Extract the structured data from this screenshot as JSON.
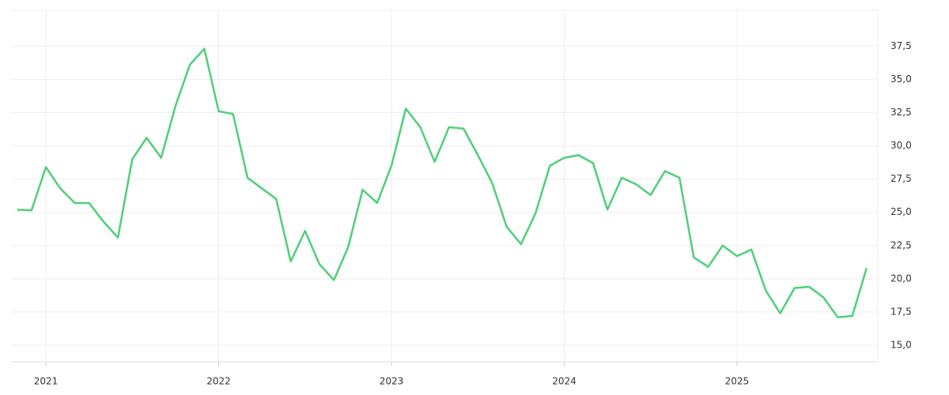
{
  "chart_data": {
    "type": "line",
    "x": [
      2020.833,
      2020.917,
      2021.0,
      2021.083,
      2021.167,
      2021.25,
      2021.333,
      2021.417,
      2021.5,
      2021.583,
      2021.667,
      2021.75,
      2021.833,
      2021.917,
      2022.0,
      2022.083,
      2022.167,
      2022.25,
      2022.333,
      2022.417,
      2022.5,
      2022.583,
      2022.667,
      2022.75,
      2022.833,
      2022.917,
      2023.0,
      2023.083,
      2023.167,
      2023.25,
      2023.333,
      2023.417,
      2023.5,
      2023.583,
      2023.667,
      2023.75,
      2023.833,
      2023.917,
      2024.0,
      2024.083,
      2024.167,
      2024.25,
      2024.333,
      2024.417,
      2024.5,
      2024.583,
      2024.667,
      2024.75,
      2024.833,
      2024.917,
      2025.0,
      2025.083,
      2025.167,
      2025.25,
      2025.333,
      2025.417,
      2025.5,
      2025.583,
      2025.667,
      2025.75
    ],
    "series": [
      {
        "color": "#4fcf78",
        "values": [
          25.2,
          25.15,
          28.4,
          26.8,
          25.7,
          25.7,
          24.3,
          23.1,
          29.0,
          30.6,
          29.1,
          33.0,
          36.1,
          37.3,
          32.6,
          32.4,
          27.6,
          26.8,
          26.0,
          21.3,
          23.6,
          21.1,
          19.9,
          22.4,
          26.7,
          25.7,
          28.5,
          32.8,
          31.4,
          28.8,
          31.4,
          31.3,
          29.3,
          27.2,
          23.9,
          22.6,
          24.9,
          28.5,
          29.1,
          29.3,
          28.7,
          25.2,
          27.6,
          27.1,
          26.3,
          28.1,
          27.6,
          21.6,
          20.9,
          22.5,
          21.7,
          22.2,
          19.1,
          17.4,
          19.3,
          19.4,
          18.6,
          17.1,
          17.2,
          20.8
        ]
      }
    ],
    "xlim": [
      2020.803,
      2025.815
    ],
    "xticks": [
      2021,
      2022,
      2023,
      2024,
      2025
    ],
    "ylim": [
      13.75,
      40.2
    ],
    "yticks": [
      {
        "value": 15,
        "label": "15,0"
      },
      {
        "value": 17.5,
        "label": "17,5"
      },
      {
        "value": 20,
        "label": "20,0"
      },
      {
        "value": 22.5,
        "label": "22,5"
      },
      {
        "value": 25,
        "label": "25,0"
      },
      {
        "value": 27.5,
        "label": "27,5"
      },
      {
        "value": 30,
        "label": "30,0"
      },
      {
        "value": 32.5,
        "label": "32,5"
      },
      {
        "value": 35,
        "label": "35,0"
      },
      {
        "value": 37.5,
        "label": "37,5"
      }
    ],
    "grid": true,
    "y_axis_side": "right"
  }
}
